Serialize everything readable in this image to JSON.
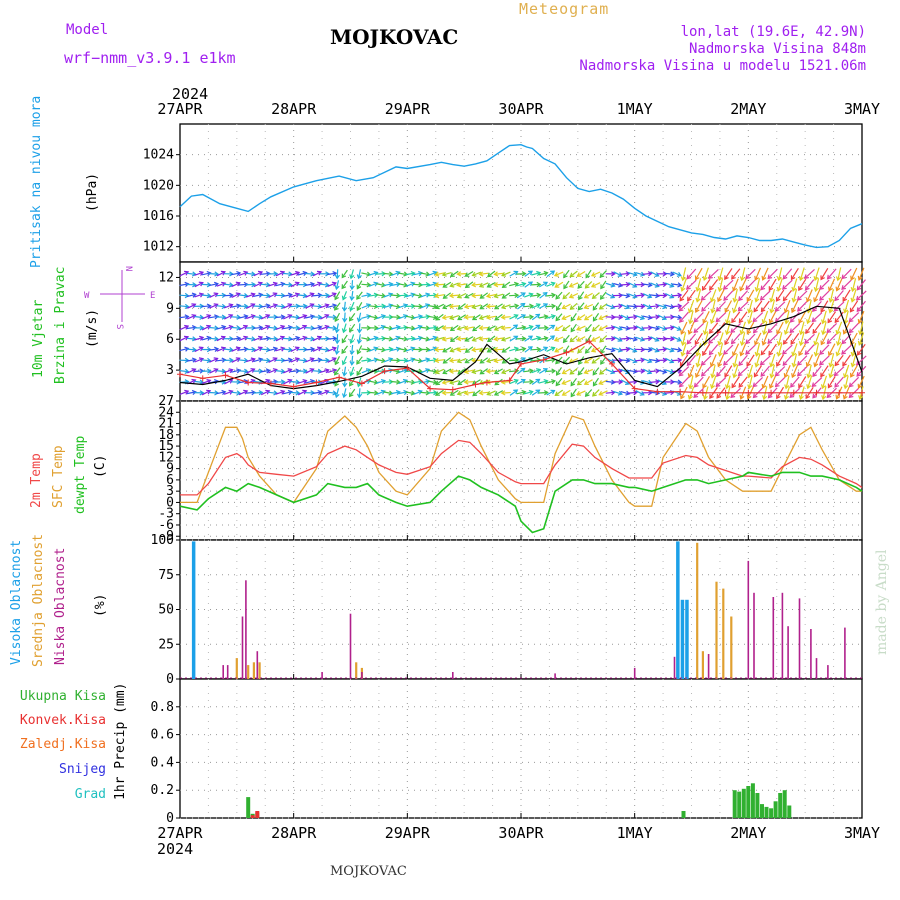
{
  "header": {
    "model_label": "Model",
    "model_name": "wrf−nmm_v3.9.1  e1km",
    "station": "MOJKOVAC",
    "product": "Meteogram",
    "coords": "lon,lat (19.6E, 42.9N)",
    "elevation": "Nadmorska Visina 848m",
    "model_elevation": "Nadmorska Visina u modelu 1521.06m",
    "year_top": "2024",
    "year_bottom": "2024",
    "footer_station": "MOJKOVAC",
    "watermark": "made by Angel"
  },
  "colors": {
    "pressure": "#1ca0e8",
    "wind_speed": "#000000",
    "wind_gust": "#e83030",
    "t2m": "#f04848",
    "sfc": "#e0a030",
    "dewpt": "#20c020",
    "cloud_high": "#1ca0e8",
    "cloud_mid": "#e0a030",
    "cloud_low": "#b0208c",
    "precip_total": "#30b030",
    "precip_conv": "#e83030",
    "precip_frozen": "#f07020",
    "precip_snow": "#3030e0",
    "precip_hail": "#20c0c0"
  },
  "chart_data": [
    {
      "type": "line",
      "panel": "pressure",
      "ylabel": [
        "Pritisak na nivou mora",
        "(hPa)"
      ],
      "x_ticks": [
        "27APR",
        "28APR",
        "29APR",
        "30APR",
        "1MAY",
        "2MAY",
        "3MAY"
      ],
      "ylim": [
        1010,
        1028
      ],
      "yticks": [
        1012,
        1016,
        1020,
        1024
      ],
      "grid": true,
      "x": [
        0,
        0.1,
        0.2,
        0.35,
        0.5,
        0.6,
        0.7,
        0.8,
        1.0,
        1.2,
        1.4,
        1.55,
        1.7,
        1.9,
        2.0,
        2.2,
        2.3,
        2.4,
        2.5,
        2.6,
        2.7,
        2.8,
        2.9,
        3.0,
        3.05,
        3.1,
        3.2,
        3.3,
        3.4,
        3.5,
        3.6,
        3.7,
        3.8,
        3.9,
        4.0,
        4.1,
        4.2,
        4.3,
        4.4,
        4.5,
        4.6,
        4.7,
        4.8,
        4.9,
        5.0,
        5.1,
        5.2,
        5.3,
        5.4,
        5.5,
        5.6,
        5.7,
        5.8,
        5.9,
        6.0
      ],
      "series": [
        {
          "values": [
            1017.2,
            1018.6,
            1018.8,
            1017.6,
            1017.0,
            1016.6,
            1017.6,
            1018.5,
            1019.8,
            1020.6,
            1021.2,
            1020.6,
            1021.0,
            1022.4,
            1022.2,
            1022.7,
            1023.0,
            1022.7,
            1022.5,
            1022.8,
            1023.2,
            1024.2,
            1025.2,
            1025.3,
            1025.0,
            1024.8,
            1023.5,
            1022.8,
            1021.0,
            1019.6,
            1019.2,
            1019.5,
            1019.0,
            1018.2,
            1017.0,
            1016.0,
            1015.3,
            1014.6,
            1014.2,
            1013.8,
            1013.6,
            1013.2,
            1013.0,
            1013.4,
            1013.2,
            1012.8,
            1012.8,
            1013.0,
            1012.6,
            1012.2,
            1011.9,
            1012.0,
            1012.8,
            1014.4,
            1015.0
          ]
        }
      ]
    },
    {
      "type": "line",
      "panel": "wind",
      "ylabel": [
        "10m Vjetar",
        "Brzina i Pravac",
        "(m/s)"
      ],
      "compass": [
        "N",
        "W",
        "E",
        "S"
      ],
      "ylim": [
        0,
        13.5
      ],
      "yticks": [
        3,
        6,
        9,
        12
      ],
      "grid": true,
      "x": [
        0,
        0.2,
        0.4,
        0.6,
        0.8,
        1.0,
        1.2,
        1.4,
        1.6,
        1.8,
        2.0,
        2.2,
        2.4,
        2.6,
        2.7,
        2.9,
        3.0,
        3.2,
        3.4,
        3.6,
        3.8,
        4.0,
        4.2,
        4.4,
        4.6,
        4.8,
        5.0,
        5.2,
        5.4,
        5.6,
        5.8,
        6.0
      ],
      "series": [
        {
          "name": "speed",
          "values": [
            1.8,
            1.6,
            2.0,
            2.6,
            1.5,
            1.2,
            1.5,
            1.9,
            2.4,
            3.4,
            3.3,
            2.2,
            2.0,
            3.8,
            5.5,
            3.6,
            3.8,
            4.5,
            3.6,
            4.2,
            4.6,
            2.0,
            1.4,
            3.2,
            5.5,
            7.5,
            7.0,
            7.5,
            8.2,
            9.2,
            9.0,
            2.8
          ]
        },
        {
          "name": "gust",
          "values": [
            2.6,
            2.2,
            2.5,
            1.8,
            1.7,
            1.4,
            1.8,
            2.3,
            1.7,
            2.9,
            3.2,
            1.2,
            1.1,
            1.6,
            1.8,
            2.0,
            3.6,
            4.0,
            4.7,
            5.8,
            3.6,
            1.2,
            0.9,
            0.9,
            0.8,
            0.8,
            0.8,
            0.8,
            0.8,
            0.8,
            0.8,
            0.8
          ]
        }
      ],
      "arrows": [
        {
          "x_from": 0.0,
          "x_to": 1.35,
          "dir_deg": 80,
          "speed": 2.0
        },
        {
          "x_from": 1.35,
          "x_to": 1.6,
          "dir_deg": 200,
          "speed": 3.0
        },
        {
          "x_from": 1.6,
          "x_to": 2.25,
          "dir_deg": 85,
          "speed": 2.5
        },
        {
          "x_from": 2.25,
          "x_to": 2.9,
          "dir_deg": 250,
          "speed": 4.0
        },
        {
          "x_from": 2.9,
          "x_to": 3.3,
          "dir_deg": 70,
          "speed": 3.5
        },
        {
          "x_from": 3.3,
          "x_to": 3.75,
          "dir_deg": 230,
          "speed": 4.5
        },
        {
          "x_from": 3.75,
          "x_to": 4.4,
          "dir_deg": 100,
          "speed": 2.0
        },
        {
          "x_from": 4.4,
          "x_to": 6.0,
          "dir_deg": 210,
          "speed": 7.5
        }
      ]
    },
    {
      "type": "line",
      "panel": "temperature",
      "ylabel": [
        "2m Temp",
        "SFC Temp",
        "dewpt Temp",
        "(C)"
      ],
      "ylim": [
        -10,
        27
      ],
      "yticks": [
        -9,
        -6,
        -3,
        0,
        3,
        6,
        9,
        12,
        15,
        18,
        21,
        24,
        27
      ],
      "grid": true,
      "x": [
        0,
        0.15,
        0.25,
        0.4,
        0.5,
        0.55,
        0.6,
        0.7,
        0.85,
        1.0,
        1.2,
        1.3,
        1.45,
        1.55,
        1.65,
        1.75,
        1.9,
        2.0,
        2.2,
        2.3,
        2.45,
        2.55,
        2.65,
        2.8,
        2.95,
        3.0,
        3.1,
        3.2,
        3.3,
        3.45,
        3.55,
        3.65,
        3.8,
        3.95,
        4.0,
        4.15,
        4.25,
        4.45,
        4.55,
        4.65,
        4.8,
        4.95,
        5.0,
        5.2,
        5.3,
        5.45,
        5.55,
        5.65,
        5.8,
        5.95,
        6.0
      ],
      "series": [
        {
          "name": "2m Temp",
          "values": [
            2,
            2,
            5,
            12,
            13,
            12,
            10,
            8,
            7.5,
            7,
            9.5,
            13,
            15,
            14,
            12,
            10,
            8,
            7.5,
            9.5,
            13,
            16.5,
            16,
            13,
            8,
            5.5,
            5,
            5,
            5,
            10,
            15.5,
            15,
            12,
            9,
            6.5,
            6.5,
            6.5,
            10.5,
            12.5,
            12,
            10,
            8.5,
            7,
            7,
            6.5,
            9.5,
            12,
            11.5,
            10,
            7,
            5,
            4
          ]
        },
        {
          "name": "SFC Temp",
          "values": [
            0,
            0,
            8,
            20,
            20,
            17,
            12,
            7,
            2,
            0,
            9,
            19,
            23,
            20,
            15,
            8,
            3,
            2,
            9,
            19,
            24,
            22,
            15,
            6,
            1,
            0,
            0,
            0,
            13,
            23,
            22,
            15,
            6,
            0,
            -1,
            -1,
            12,
            21,
            19,
            12,
            6,
            3,
            3,
            3,
            9,
            18,
            20,
            14,
            6,
            3,
            3
          ]
        },
        {
          "name": "dewpt Temp",
          "values": [
            -1,
            -2,
            1,
            4,
            3,
            4,
            5,
            4,
            2,
            0,
            2,
            5,
            4,
            4,
            5,
            2,
            0,
            -1,
            0,
            3,
            7,
            6,
            4,
            2,
            -1,
            -5,
            -8,
            -7,
            3,
            6,
            6,
            5,
            5,
            4,
            4,
            3,
            4,
            6,
            6,
            5,
            6,
            7,
            8,
            7,
            8,
            8,
            7,
            7,
            6,
            4,
            3
          ]
        }
      ]
    },
    {
      "type": "bar",
      "panel": "clouds",
      "ylabel": [
        "Visoka Oblacnost",
        "Srednja Oblacnost",
        "Niska Oblacnost",
        "(%)"
      ],
      "ylim": [
        0,
        100
      ],
      "yticks": [
        0,
        25,
        50,
        75,
        100
      ],
      "grid": true,
      "series": [
        {
          "name": "Visoka Oblacnost",
          "x": [
            0.12,
            4.38,
            4.42,
            4.46
          ],
          "values": [
            99,
            99,
            57,
            57
          ]
        },
        {
          "name": "Srednja Oblacnost",
          "x": [
            0.5,
            0.6,
            0.65,
            0.7,
            1.55,
            1.6,
            4.55,
            4.6,
            4.72,
            4.78,
            4.85
          ],
          "values": [
            15,
            10,
            12,
            12,
            12,
            8,
            98,
            20,
            70,
            65,
            45
          ]
        },
        {
          "name": "Niska Oblacnost",
          "x": [
            0.38,
            0.42,
            0.55,
            0.58,
            0.68,
            1.25,
            1.5,
            1.6,
            2.4,
            3.3,
            4.0,
            4.35,
            4.65,
            5.0,
            5.05,
            5.22,
            5.3,
            5.35,
            5.45,
            5.55,
            5.6,
            5.7,
            5.85
          ],
          "values": [
            10,
            10,
            45,
            71,
            20,
            5,
            47,
            5,
            5,
            4,
            8,
            16,
            18,
            85,
            62,
            59,
            62,
            38,
            58,
            36,
            15,
            10,
            37
          ]
        }
      ]
    },
    {
      "type": "bar",
      "panel": "precipitation",
      "ylabel": [
        "Ukupna Kisa",
        "Konvek.Kisa",
        "Zaledj.Kisa",
        "Snijeg",
        "Grad",
        "1hr Precip (mm)"
      ],
      "ylim": [
        0,
        1.0
      ],
      "yticks": [
        0,
        0.2,
        0.4,
        0.6,
        0.8
      ],
      "grid": true,
      "x_ticks": [
        "27APR",
        "28APR",
        "29APR",
        "30APR",
        "1MAY",
        "2MAY",
        "3MAY"
      ],
      "series": [
        {
          "name": "Ukupna Kisa",
          "x": [
            0.6,
            0.64,
            0.68,
            4.43,
            4.88,
            4.92,
            4.96,
            5.0,
            5.04,
            5.08,
            5.12,
            5.16,
            5.2,
            5.24,
            5.28,
            5.32,
            5.36
          ],
          "values": [
            0.15,
            0.03,
            0.04,
            0.05,
            0.2,
            0.19,
            0.21,
            0.23,
            0.25,
            0.18,
            0.1,
            0.08,
            0.07,
            0.12,
            0.18,
            0.2,
            0.09
          ]
        },
        {
          "name": "Konvek.Kisa",
          "x": [
            0.64,
            0.68
          ],
          "values": [
            0.02,
            0.05
          ]
        }
      ]
    }
  ]
}
